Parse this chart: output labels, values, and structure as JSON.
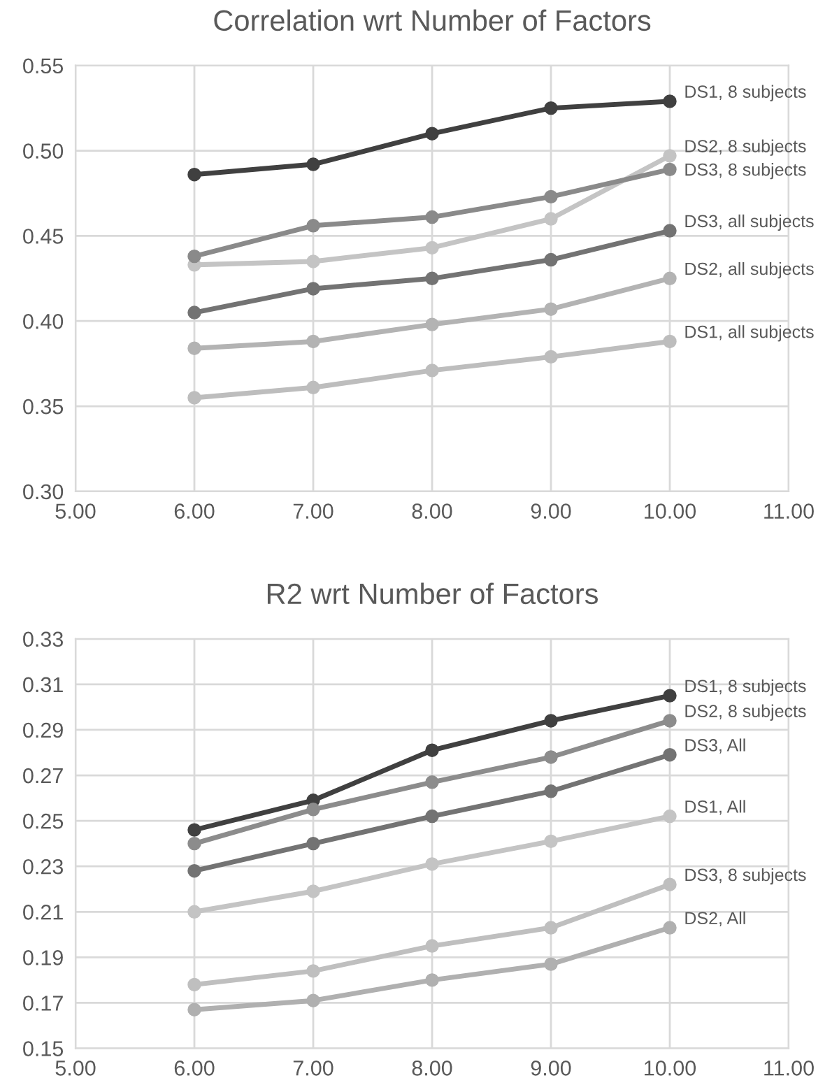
{
  "chart_data": [
    {
      "type": "line",
      "title": "Correlation wrt Number of Factors",
      "x": [
        6,
        7,
        8,
        9,
        10
      ],
      "xlim": [
        5,
        11
      ],
      "xticks": [
        {
          "value": 5,
          "label": "5.00"
        },
        {
          "value": 6,
          "label": "6.00"
        },
        {
          "value": 7,
          "label": "7.00"
        },
        {
          "value": 8,
          "label": "8.00"
        },
        {
          "value": 9,
          "label": "9.00"
        },
        {
          "value": 10,
          "label": "10.00"
        },
        {
          "value": 11,
          "label": "11.00"
        }
      ],
      "ylim": [
        0.3,
        0.55
      ],
      "yticks": [
        {
          "value": 0.3,
          "label": "0.30"
        },
        {
          "value": 0.35,
          "label": "0.35"
        },
        {
          "value": 0.4,
          "label": "0.40"
        },
        {
          "value": 0.45,
          "label": "0.45"
        },
        {
          "value": 0.5,
          "label": "0.50"
        },
        {
          "value": 0.55,
          "label": "0.55"
        }
      ],
      "grid": true,
      "legend": false,
      "marker": "circle",
      "line_style": "solid",
      "series": [
        {
          "name": "DS1, 8 subjects",
          "color": "#404040",
          "values": [
            0.486,
            0.492,
            0.51,
            0.525,
            0.529
          ]
        },
        {
          "name": "DS2, 8 subjects",
          "color": "#c4c4c4",
          "values": [
            0.433,
            0.435,
            0.443,
            0.46,
            0.497
          ]
        },
        {
          "name": "DS3, 8 subjects",
          "color": "#8a8a8a",
          "values": [
            0.438,
            0.456,
            0.461,
            0.473,
            0.489
          ]
        },
        {
          "name": "DS3, all subjects",
          "color": "#737373",
          "values": [
            0.405,
            0.419,
            0.425,
            0.436,
            0.453
          ]
        },
        {
          "name": "DS2, all subjects",
          "color": "#b3b3b3",
          "values": [
            0.384,
            0.388,
            0.398,
            0.407,
            0.425
          ]
        },
        {
          "name": "DS1, all subjects",
          "color": "#bdbdbd",
          "values": [
            0.355,
            0.361,
            0.371,
            0.379,
            0.388
          ]
        }
      ]
    },
    {
      "type": "line",
      "title": "R2 wrt Number of Factors",
      "x": [
        6,
        7,
        8,
        9,
        10
      ],
      "xlim": [
        5,
        11
      ],
      "xticks": [
        {
          "value": 5,
          "label": "5.00"
        },
        {
          "value": 6,
          "label": "6.00"
        },
        {
          "value": 7,
          "label": "7.00"
        },
        {
          "value": 8,
          "label": "8.00"
        },
        {
          "value": 9,
          "label": "9.00"
        },
        {
          "value": 10,
          "label": "10.00"
        },
        {
          "value": 11,
          "label": "11.00"
        }
      ],
      "ylim": [
        0.15,
        0.33
      ],
      "yticks": [
        {
          "value": 0.15,
          "label": "0.15"
        },
        {
          "value": 0.17,
          "label": "0.17"
        },
        {
          "value": 0.19,
          "label": "0.19"
        },
        {
          "value": 0.21,
          "label": "0.21"
        },
        {
          "value": 0.23,
          "label": "0.23"
        },
        {
          "value": 0.25,
          "label": "0.25"
        },
        {
          "value": 0.27,
          "label": "0.27"
        },
        {
          "value": 0.29,
          "label": "0.29"
        },
        {
          "value": 0.31,
          "label": "0.31"
        },
        {
          "value": 0.33,
          "label": "0.33"
        }
      ],
      "grid": true,
      "legend": false,
      "marker": "circle",
      "line_style": "solid",
      "series": [
        {
          "name": "DS1, 8 subjects",
          "color": "#404040",
          "values": [
            0.246,
            0.259,
            0.281,
            0.294,
            0.305
          ]
        },
        {
          "name": "DS2, 8 subjects",
          "color": "#8c8c8c",
          "values": [
            0.24,
            0.255,
            0.267,
            0.278,
            0.294
          ]
        },
        {
          "name": "DS3, All",
          "color": "#737373",
          "values": [
            0.228,
            0.24,
            0.252,
            0.263,
            0.279
          ]
        },
        {
          "name": "DS1, All",
          "color": "#c4c4c4",
          "values": [
            0.21,
            0.219,
            0.231,
            0.241,
            0.252
          ]
        },
        {
          "name": "DS3, 8 subjects",
          "color": "#bfbfbf",
          "values": [
            0.178,
            0.184,
            0.195,
            0.203,
            0.222
          ]
        },
        {
          "name": "DS2, All",
          "color": "#b0b0b0",
          "values": [
            0.167,
            0.171,
            0.18,
            0.187,
            0.203
          ]
        }
      ]
    }
  ]
}
